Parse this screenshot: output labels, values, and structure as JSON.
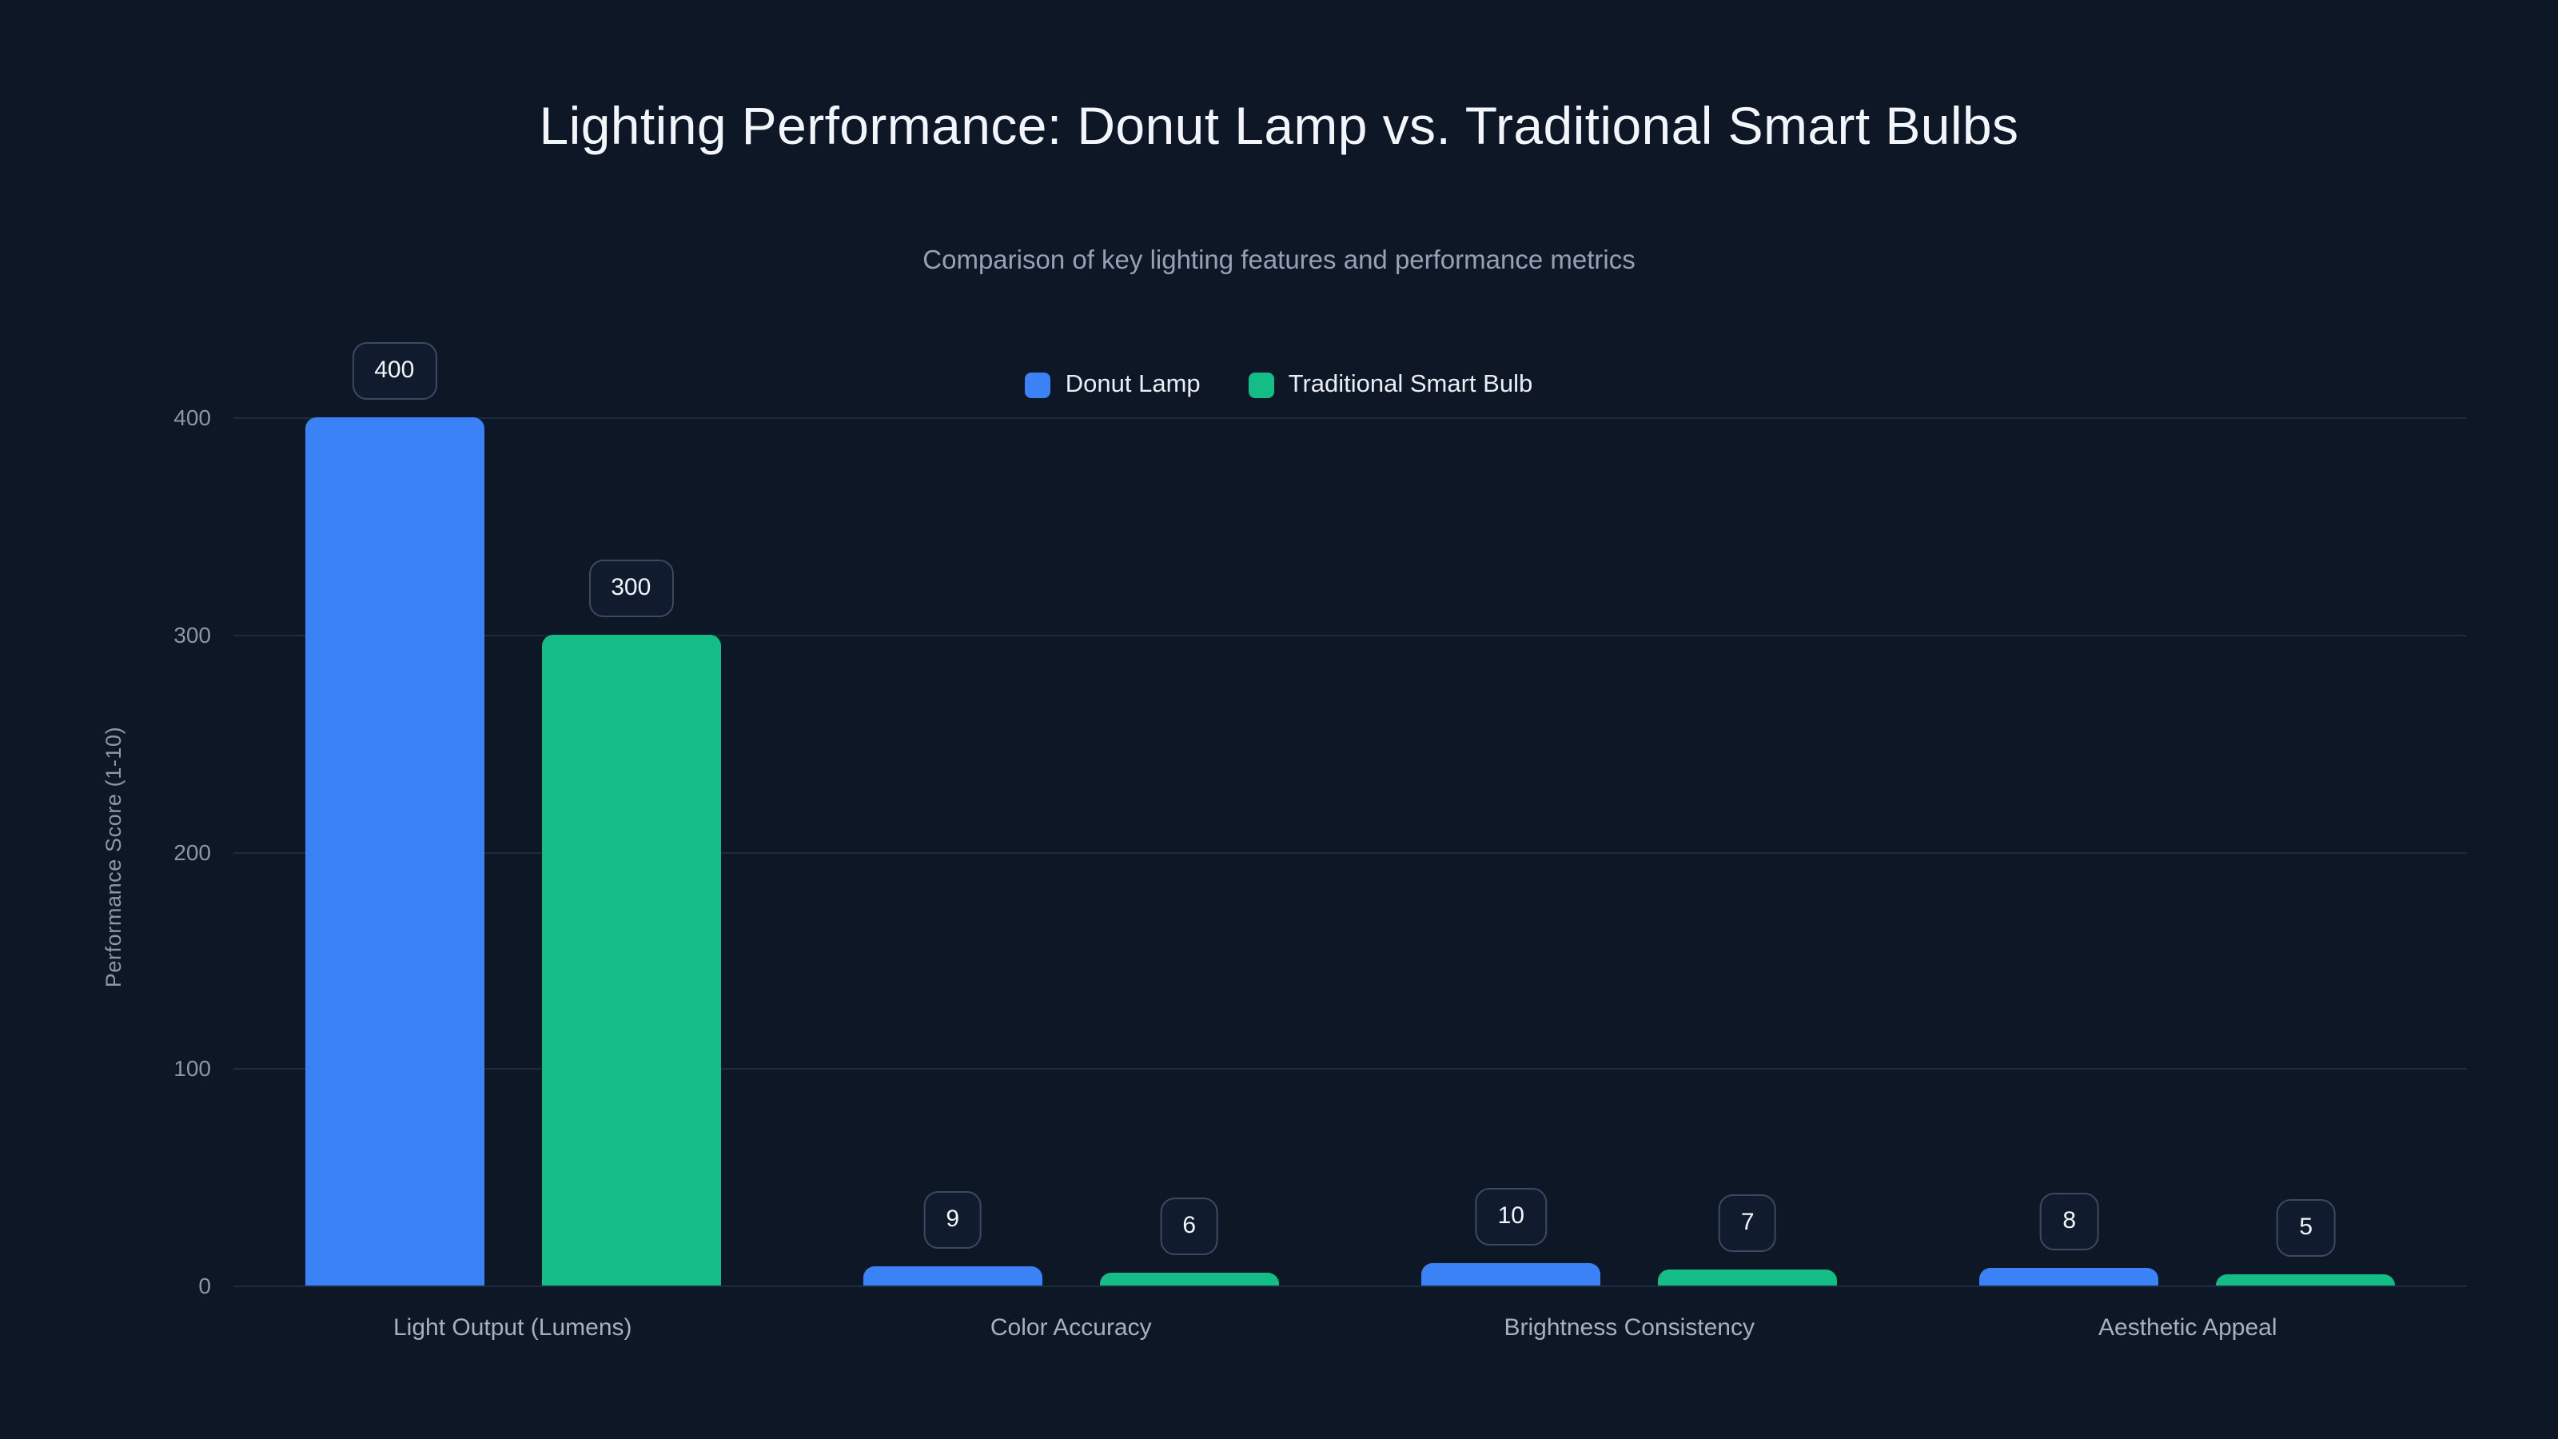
{
  "title": "Lighting Performance: Donut Lamp vs. Traditional Smart Bulbs",
  "subtitle": "Comparison of key lighting features and performance metrics",
  "colors": {
    "background": "#0e1726",
    "donut_lamp": "#3b82f6",
    "traditional_smart_bulb": "#14bd85",
    "gridline": "#1d2b41",
    "tick_text": "#8b97a9",
    "label_box_border": "#3c4a61"
  },
  "chart_data": {
    "type": "bar",
    "categories": [
      "Light Output (Lumens)",
      "Color Accuracy",
      "Brightness Consistency",
      "Aesthetic Appeal"
    ],
    "series": [
      {
        "name": "Donut Lamp",
        "color": "#3b82f6",
        "values": [
          400,
          9,
          10,
          8
        ]
      },
      {
        "name": "Traditional Smart Bulb",
        "color": "#14bd85",
        "values": [
          300,
          6,
          7,
          5
        ]
      }
    ],
    "title": "Lighting Performance: Donut Lamp vs. Traditional Smart Bulbs",
    "subtitle": "Comparison of key lighting features and performance metrics",
    "xlabel": "",
    "ylabel": "Performance Score (1-10)",
    "yticks": [
      0,
      100,
      200,
      300,
      400
    ],
    "ylim": [
      0,
      400
    ],
    "grid": true,
    "legend_position": "top",
    "value_labels": true
  }
}
